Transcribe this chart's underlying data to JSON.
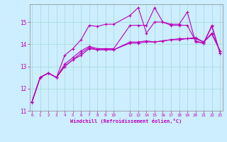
{
  "xlabel": "Windchill (Refroidissement éolien,°C)",
  "background_color": "#cceeff",
  "grid_color": "#aadddd",
  "line_color": "#bb00bb",
  "x_ticks": [
    0,
    1,
    2,
    3,
    4,
    5,
    6,
    7,
    8,
    9,
    10,
    12,
    13,
    14,
    15,
    16,
    17,
    18,
    19,
    20,
    21,
    22,
    23
  ],
  "ylim": [
    11.0,
    15.8
  ],
  "xlim": [
    -0.3,
    23.3
  ],
  "yticks": [
    11,
    12,
    13,
    14,
    15
  ],
  "series1_x": [
    0,
    1,
    2,
    3,
    4,
    5,
    6,
    7,
    8,
    9,
    10,
    12,
    13,
    14,
    15,
    16,
    17,
    18,
    19,
    20,
    21,
    22,
    23
  ],
  "series1_y": [
    11.4,
    12.5,
    12.7,
    12.5,
    13.0,
    13.3,
    13.6,
    13.85,
    13.75,
    13.75,
    13.75,
    14.1,
    14.1,
    14.15,
    14.1,
    14.15,
    14.2,
    14.2,
    14.25,
    14.3,
    14.1,
    14.5,
    13.7
  ],
  "series2_x": [
    0,
    1,
    2,
    3,
    4,
    5,
    6,
    7,
    8,
    9,
    10,
    12,
    13,
    14,
    15,
    16,
    17,
    18,
    19,
    20,
    21,
    22,
    23
  ],
  "series2_y": [
    11.4,
    12.5,
    12.7,
    12.5,
    13.5,
    13.8,
    14.2,
    14.85,
    14.8,
    14.9,
    14.9,
    15.3,
    15.65,
    14.5,
    15.0,
    15.0,
    14.85,
    14.85,
    14.85,
    14.15,
    14.05,
    14.8,
    13.6
  ],
  "series3_x": [
    0,
    1,
    2,
    3,
    4,
    5,
    6,
    7,
    8,
    9,
    10,
    12,
    13,
    14,
    15,
    16,
    17,
    18,
    19,
    20,
    21,
    22,
    23
  ],
  "series3_y": [
    11.4,
    12.5,
    12.7,
    12.5,
    13.1,
    13.4,
    13.7,
    13.9,
    13.8,
    13.8,
    13.8,
    14.85,
    14.85,
    14.85,
    15.65,
    15.0,
    14.9,
    14.9,
    15.45,
    14.1,
    14.05,
    14.85,
    13.6
  ],
  "series4_x": [
    0,
    1,
    2,
    3,
    4,
    5,
    6,
    7,
    8,
    9,
    10,
    12,
    13,
    14,
    15,
    16,
    17,
    18,
    19,
    20,
    21,
    22,
    23
  ],
  "series4_y": [
    11.4,
    12.5,
    12.7,
    12.5,
    13.0,
    13.3,
    13.5,
    13.8,
    13.75,
    13.75,
    13.75,
    14.05,
    14.05,
    14.1,
    14.1,
    14.15,
    14.2,
    14.25,
    14.25,
    14.25,
    14.1,
    14.45,
    13.7
  ]
}
